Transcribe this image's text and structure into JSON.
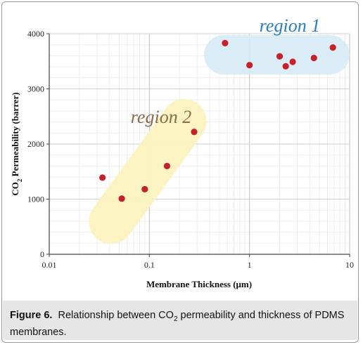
{
  "figure": {
    "caption_label": "Figure 6.",
    "caption_text_1": "Relationship between CO",
    "caption_sub": "2",
    "caption_text_2": " permeability and thickness of PDMS membranes."
  },
  "chart_data": {
    "type": "scatter",
    "xscale": "log",
    "xlim": [
      0.01,
      10
    ],
    "ylim": [
      0,
      4000
    ],
    "xlabel": "Membrane Thickness (μm)",
    "ylabel_main": "CO",
    "ylabel_sub": "2",
    "ylabel_rest": " Permeability (barrer)",
    "grid": true,
    "x_ticks": [
      0.01,
      0.1,
      1,
      10
    ],
    "x_tick_labels": [
      "0.01",
      "0.1",
      "1",
      "10"
    ],
    "y_ticks": [
      0,
      1000,
      2000,
      3000,
      4000
    ],
    "y_tick_labels": [
      "0",
      "1000",
      "2000",
      "3000",
      "4000"
    ],
    "point_color": "#c8202a",
    "points": [
      {
        "x": 0.034,
        "y": 1390
      },
      {
        "x": 0.053,
        "y": 1010
      },
      {
        "x": 0.09,
        "y": 1180
      },
      {
        "x": 0.15,
        "y": 1600
      },
      {
        "x": 0.28,
        "y": 2220
      },
      {
        "x": 0.57,
        "y": 3830
      },
      {
        "x": 1.0,
        "y": 3430
      },
      {
        "x": 2.0,
        "y": 3590
      },
      {
        "x": 2.3,
        "y": 3410
      },
      {
        "x": 2.7,
        "y": 3490
      },
      {
        "x": 4.4,
        "y": 3560
      },
      {
        "x": 6.8,
        "y": 3750
      }
    ],
    "annotations": [
      {
        "text": "region 1",
        "color": "#2a7fb8",
        "fill": "#d6ebf5"
      },
      {
        "text": "region 2",
        "color": "#8a6a4a",
        "fill": "#fbf3bf"
      }
    ]
  }
}
